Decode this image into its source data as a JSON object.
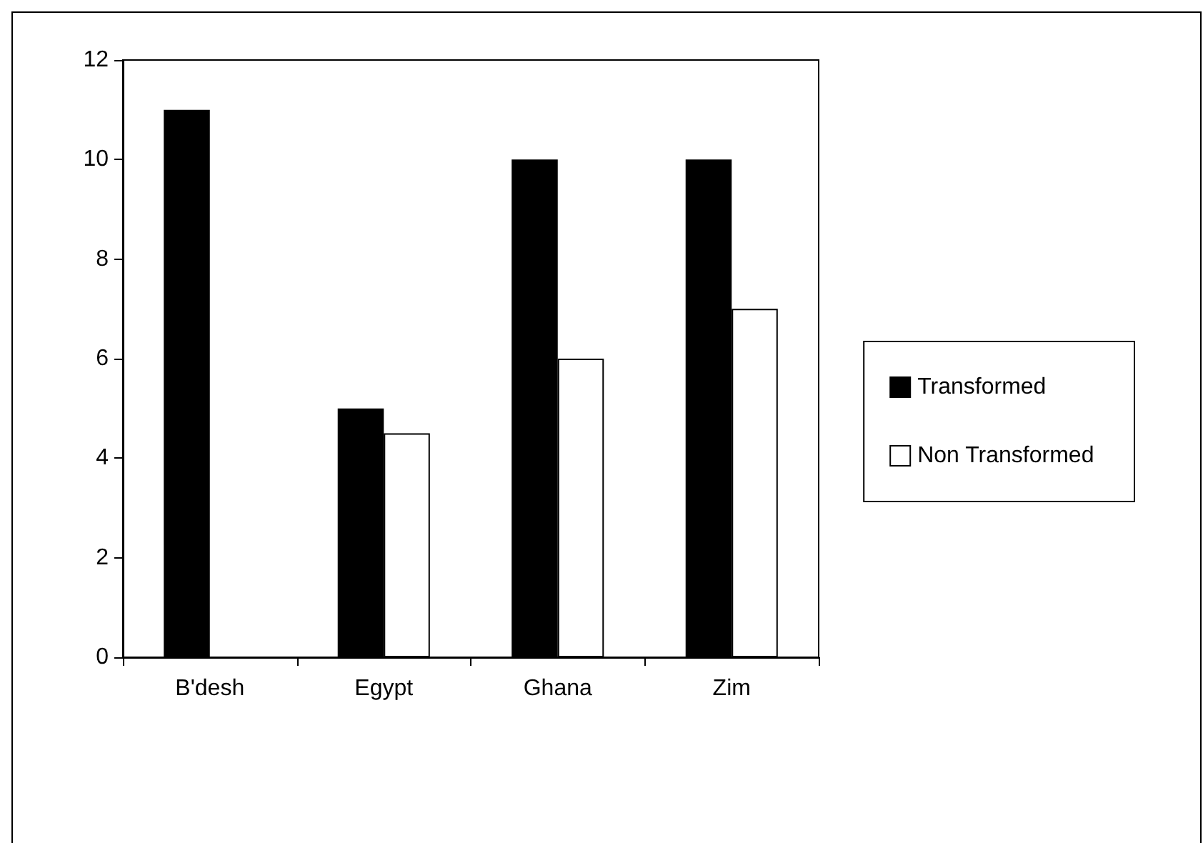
{
  "chart_data": {
    "type": "bar",
    "categories": [
      "B'desh",
      "Egypt",
      "Ghana",
      "Zim"
    ],
    "series": [
      {
        "name": "Transformed",
        "color": "#000000",
        "values": [
          11,
          5,
          10,
          10
        ]
      },
      {
        "name": "Non Transformed",
        "color": "#ffffff",
        "values": [
          null,
          4.5,
          6,
          7
        ]
      }
    ],
    "ylim": [
      0,
      12
    ],
    "yticks": [
      0,
      2,
      4,
      6,
      8,
      10,
      12
    ],
    "grid": false,
    "legend": "right"
  }
}
